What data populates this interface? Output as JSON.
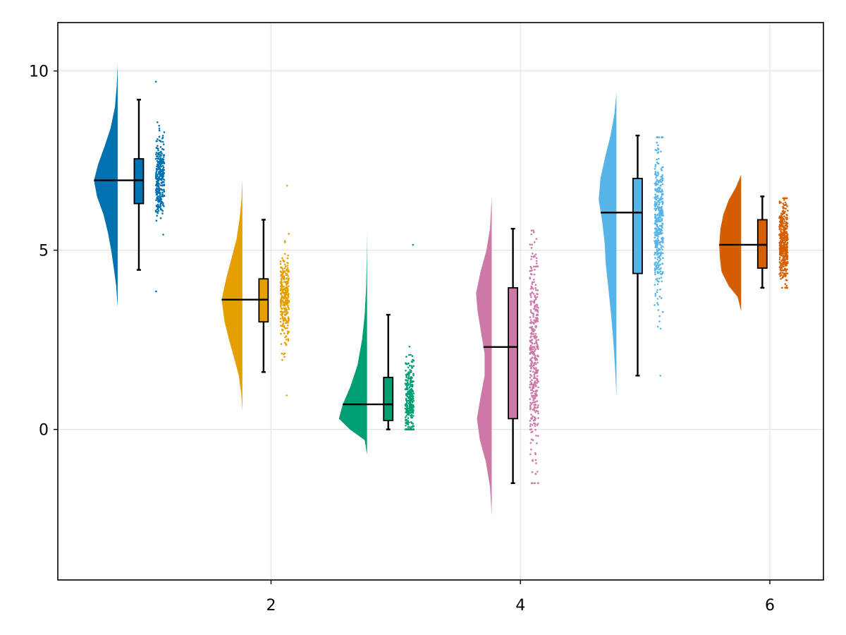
{
  "chart_data": {
    "type": "raincloud",
    "title": "",
    "xlabel": "",
    "ylabel": "",
    "xlim": [
      0.29,
      6.43
    ],
    "ylim": [
      -4.2,
      11.35
    ],
    "x_ticks": [
      2,
      4,
      6
    ],
    "y_ticks": [
      0,
      5,
      10
    ],
    "x_tick_labels": [
      "2",
      "4",
      "6"
    ],
    "y_tick_labels": [
      "0",
      "5",
      "10"
    ],
    "grid": true,
    "legend": "none",
    "groups": [
      {
        "x": 1,
        "color": "#0072b2",
        "min": 4.45,
        "q1": 6.3,
        "median": 6.95,
        "q3": 7.55,
        "max": 9.2,
        "density": [
          [
            3.4,
            0.0
          ],
          [
            4.0,
            0.05
          ],
          [
            4.5,
            0.13
          ],
          [
            5.0,
            0.22
          ],
          [
            5.5,
            0.33
          ],
          [
            6.0,
            0.48
          ],
          [
            6.5,
            0.7
          ],
          [
            6.95,
            0.8
          ],
          [
            7.4,
            0.66
          ],
          [
            7.9,
            0.44
          ],
          [
            8.4,
            0.24
          ],
          [
            9.0,
            0.09
          ],
          [
            9.6,
            0.03
          ],
          [
            10.2,
            0.0
          ]
        ],
        "points": {
          "n": 300,
          "min": 3.85,
          "max": 9.7,
          "center": 7.0,
          "spread": 0.85
        }
      },
      {
        "x": 2,
        "color": "#e69f00",
        "min": 1.6,
        "q1": 3.0,
        "median": 3.62,
        "q3": 4.2,
        "max": 5.85,
        "density": [
          [
            0.5,
            0.0
          ],
          [
            1.0,
            0.04
          ],
          [
            1.5,
            0.12
          ],
          [
            2.0,
            0.28
          ],
          [
            2.5,
            0.45
          ],
          [
            3.0,
            0.6
          ],
          [
            3.62,
            0.7
          ],
          [
            4.2,
            0.55
          ],
          [
            4.8,
            0.36
          ],
          [
            5.3,
            0.2
          ],
          [
            5.9,
            0.09
          ],
          [
            6.4,
            0.03
          ],
          [
            7.0,
            0.0
          ]
        ],
        "points": {
          "n": 300,
          "min": 0.95,
          "max": 6.8,
          "center": 3.7,
          "spread": 0.9
        }
      },
      {
        "x": 3,
        "color": "#009e73",
        "min": 0.0,
        "q1": 0.25,
        "median": 0.7,
        "q3": 1.45,
        "max": 3.2,
        "density": [
          [
            -0.7,
            0.0
          ],
          [
            -0.3,
            0.08
          ],
          [
            0.0,
            0.58
          ],
          [
            0.3,
            0.95
          ],
          [
            0.7,
            0.82
          ],
          [
            1.2,
            0.56
          ],
          [
            1.8,
            0.32
          ],
          [
            2.5,
            0.17
          ],
          [
            3.2,
            0.08
          ],
          [
            4.0,
            0.03
          ],
          [
            4.8,
            0.01
          ],
          [
            5.6,
            0.0
          ]
        ],
        "points": {
          "n": 300,
          "min": 0.0,
          "max": 5.15,
          "center": 0.8,
          "spread": 0.9
        }
      },
      {
        "x": 4,
        "color": "#cc79a7",
        "min": -1.5,
        "q1": 0.3,
        "median": 2.3,
        "q3": 3.95,
        "max": 5.6,
        "density": [
          [
            -2.4,
            0.0
          ],
          [
            -1.6,
            0.06
          ],
          [
            -0.9,
            0.2
          ],
          [
            -0.3,
            0.4
          ],
          [
            0.3,
            0.5
          ],
          [
            0.9,
            0.38
          ],
          [
            1.5,
            0.24
          ],
          [
            2.1,
            0.24
          ],
          [
            2.7,
            0.36
          ],
          [
            3.3,
            0.48
          ],
          [
            3.8,
            0.53
          ],
          [
            4.4,
            0.38
          ],
          [
            5.0,
            0.18
          ],
          [
            5.6,
            0.06
          ],
          [
            6.5,
            0.0
          ]
        ],
        "points": {
          "n": 400,
          "min": -1.5,
          "max": 5.55,
          "center": 2.0,
          "spread": 2.0
        }
      },
      {
        "x": 5,
        "color": "#56b4e9",
        "min": 1.5,
        "q1": 4.35,
        "median": 6.05,
        "q3": 7.0,
        "max": 8.2,
        "density": [
          [
            0.9,
            0.0
          ],
          [
            1.6,
            0.04
          ],
          [
            2.4,
            0.1
          ],
          [
            3.2,
            0.18
          ],
          [
            4.0,
            0.28
          ],
          [
            4.6,
            0.36
          ],
          [
            5.2,
            0.4
          ],
          [
            5.8,
            0.48
          ],
          [
            6.4,
            0.6
          ],
          [
            7.0,
            0.54
          ],
          [
            7.6,
            0.38
          ],
          [
            8.2,
            0.2
          ],
          [
            8.8,
            0.07
          ],
          [
            9.4,
            0.0
          ]
        ],
        "points": {
          "n": 400,
          "min": 1.5,
          "max": 8.15,
          "center": 5.8,
          "spread": 1.5
        }
      },
      {
        "x": 6,
        "color": "#d55e00",
        "min": 3.95,
        "q1": 4.5,
        "median": 5.15,
        "q3": 5.85,
        "max": 6.5,
        "density": [
          [
            3.3,
            0.0
          ],
          [
            3.7,
            0.12
          ],
          [
            4.0,
            0.42
          ],
          [
            4.4,
            0.66
          ],
          [
            4.8,
            0.72
          ],
          [
            5.15,
            0.74
          ],
          [
            5.6,
            0.7
          ],
          [
            6.0,
            0.6
          ],
          [
            6.4,
            0.42
          ],
          [
            6.75,
            0.18
          ],
          [
            7.1,
            0.0
          ]
        ],
        "points": {
          "n": 400,
          "min": 3.95,
          "max": 6.45,
          "center": 5.2,
          "spread": 0.75
        }
      }
    ]
  }
}
